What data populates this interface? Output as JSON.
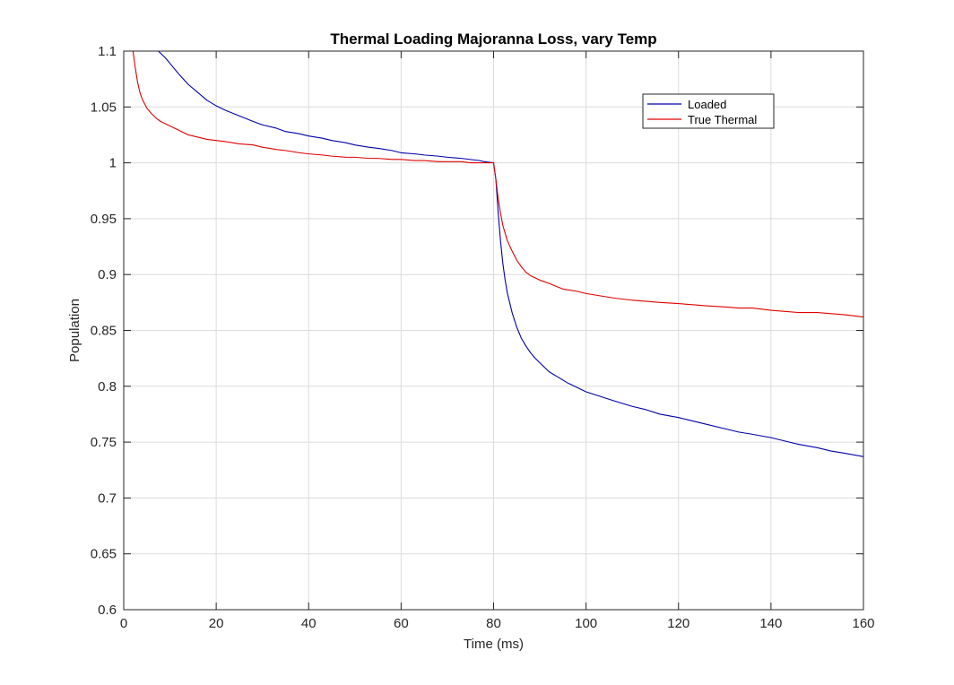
{
  "chart_data": {
    "type": "line",
    "title": "Thermal Loading Majoranna Loss, vary Temp",
    "xlabel": "Time (ms)",
    "ylabel": "Population",
    "xlim": [
      0,
      160
    ],
    "ylim": [
      0.6,
      1.1
    ],
    "xticks": [
      0,
      20,
      40,
      60,
      80,
      100,
      120,
      140,
      160
    ],
    "yticks": [
      0.6,
      0.65,
      0.7,
      0.75,
      0.8,
      0.85,
      0.9,
      0.95,
      1,
      1.05,
      1.1
    ],
    "xtick_labels": [
      "0",
      "20",
      "40",
      "60",
      "80",
      "100",
      "120",
      "140",
      "160"
    ],
    "ytick_labels": [
      "0.6",
      "0.65",
      "0.7",
      "0.75",
      "0.8",
      "0.85",
      "0.9",
      "0.95",
      "1",
      "1.05",
      "1.1"
    ],
    "grid": true,
    "legend_position": "top-right",
    "series": [
      {
        "name": "Loaded",
        "color": "#0000a8",
        "x": [
          7.5,
          9,
          10,
          12,
          14,
          16,
          18,
          20,
          22,
          25,
          28,
          30,
          33,
          35,
          38,
          40,
          43,
          45,
          48,
          50,
          53,
          55,
          58,
          60,
          63,
          65,
          68,
          70,
          73,
          75,
          77,
          78,
          79,
          80,
          80.5,
          81,
          81.5,
          82,
          82.5,
          83,
          84,
          85,
          86,
          87,
          88,
          89,
          90,
          92,
          94,
          96,
          98,
          100,
          103,
          106,
          110,
          113,
          116,
          120,
          123,
          126,
          130,
          133,
          136,
          140,
          143,
          146,
          150,
          153,
          156,
          160
        ],
        "y": [
          1.1,
          1.094,
          1.089,
          1.079,
          1.07,
          1.063,
          1.056,
          1.051,
          1.047,
          1.042,
          1.037,
          1.034,
          1.031,
          1.028,
          1.026,
          1.024,
          1.022,
          1.02,
          1.018,
          1.016,
          1.014,
          1.013,
          1.011,
          1.009,
          1.008,
          1.007,
          1.006,
          1.005,
          1.004,
          1.003,
          1.002,
          1.001,
          1.0005,
          1.0,
          0.985,
          0.955,
          0.93,
          0.91,
          0.895,
          0.883,
          0.866,
          0.853,
          0.843,
          0.836,
          0.83,
          0.825,
          0.821,
          0.813,
          0.808,
          0.803,
          0.799,
          0.795,
          0.791,
          0.787,
          0.782,
          0.779,
          0.775,
          0.772,
          0.769,
          0.766,
          0.762,
          0.759,
          0.757,
          0.754,
          0.751,
          0.748,
          0.745,
          0.742,
          0.74,
          0.737
        ]
      },
      {
        "name": "True Thermal",
        "color": "#e00000",
        "x": [
          2,
          2.5,
          3,
          3.5,
          4,
          5,
          6,
          7,
          8,
          9,
          10,
          11,
          12,
          13,
          14,
          16,
          18,
          20,
          22,
          25,
          28,
          30,
          33,
          35,
          38,
          40,
          43,
          45,
          48,
          50,
          53,
          55,
          58,
          60,
          63,
          65,
          68,
          70,
          73,
          75,
          78,
          80,
          80.5,
          81,
          81.5,
          82,
          83,
          84,
          85,
          86,
          87,
          88,
          90,
          92,
          95,
          98,
          100,
          103,
          106,
          110,
          113,
          116,
          120,
          123,
          126,
          130,
          133,
          136,
          140,
          143,
          146,
          150,
          153,
          156,
          160
        ],
        "y": [
          1.1,
          1.085,
          1.072,
          1.063,
          1.057,
          1.049,
          1.044,
          1.04,
          1.037,
          1.035,
          1.033,
          1.031,
          1.029,
          1.027,
          1.025,
          1.023,
          1.021,
          1.02,
          1.019,
          1.017,
          1.016,
          1.014,
          1.012,
          1.011,
          1.009,
          1.008,
          1.007,
          1.006,
          1.005,
          1.005,
          1.004,
          1.004,
          1.003,
          1.003,
          1.002,
          1.002,
          1.001,
          1.001,
          1.001,
          1.0,
          1.0,
          1.0,
          0.985,
          0.968,
          0.955,
          0.944,
          0.93,
          0.921,
          0.913,
          0.907,
          0.902,
          0.899,
          0.895,
          0.892,
          0.887,
          0.885,
          0.883,
          0.881,
          0.879,
          0.877,
          0.876,
          0.875,
          0.874,
          0.873,
          0.872,
          0.871,
          0.87,
          0.87,
          0.868,
          0.867,
          0.866,
          0.866,
          0.865,
          0.864,
          0.862
        ]
      }
    ]
  }
}
